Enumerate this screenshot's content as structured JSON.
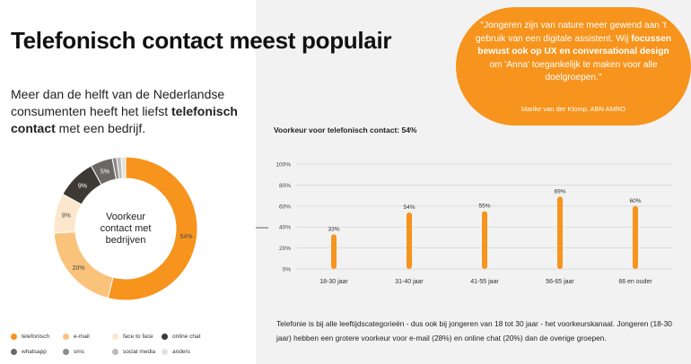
{
  "header": {
    "title": "Telefonisch contact meest populair"
  },
  "intro": {
    "line1": "Meer dan de helft van de Nederlandse consumenten heeft het liefst",
    "bold": "telefonisch contact",
    "line2": " met een bedrijf."
  },
  "quote": {
    "part1": "\"Jongeren zijn van nature meer gewend aan 't gebruik van een digitale assistent. Wij ",
    "bold": "focussen bewust ook op UX en conversational design",
    "part2": " om 'Anna' toegankelijk te maken voor alle doelgroepen.\"",
    "author": "Marike van der Klomp, ABN AMRO"
  },
  "footnote": "Telefonie is bij alle leeftijdscategorieën - dus ook bij jongeren van 18 tot 30 jaar - het voorkeurskanaal. Jongeren (18-30 jaar) hebben een grotere voorkeur voor e-mail (28%) en online chat (20%) dan de overige groepen.",
  "colors": {
    "telefonisch": "#f7941d",
    "email": "#f9c37c",
    "face_to_face": "#fde7cc",
    "online_chat": "#3d3935",
    "whatsapp": "#6b6764",
    "sms": "#8f8c89",
    "social_media": "#bdbbb9",
    "anders": "#e3e2e1"
  },
  "chart_data": [
    {
      "type": "pie",
      "title": "",
      "center_label": [
        "Voorkeur",
        "contact met",
        "bedrijven"
      ],
      "slices": [
        {
          "key": "telefonisch",
          "label": "telefonisch",
          "value": 54,
          "data_label": "54%"
        },
        {
          "key": "email",
          "label": "e-mail",
          "value": 20,
          "data_label": "20%"
        },
        {
          "key": "face_to_face",
          "label": "face to face",
          "value": 9,
          "data_label": "9%"
        },
        {
          "key": "online_chat",
          "label": "online chat",
          "value": 9,
          "data_label": "9%"
        },
        {
          "key": "whatsapp",
          "label": "whatsapp",
          "value": 5,
          "data_label": "5%"
        },
        {
          "key": "sms",
          "label": "sms",
          "value": 1,
          "data_label": ""
        },
        {
          "key": "social_media",
          "label": "social media",
          "value": 1,
          "data_label": ""
        },
        {
          "key": "anders",
          "label": "anders",
          "value": 1,
          "data_label": ""
        }
      ]
    },
    {
      "type": "bar",
      "title": "Voorkeur voor telefonisch contact: 54%",
      "categories": [
        "18-30 jaar",
        "31-40 jaar",
        "41-55 jaar",
        "56-65 jaar",
        "66 en ouder"
      ],
      "values": [
        33,
        54,
        55,
        69,
        60
      ],
      "data_labels": [
        "33%",
        "54%",
        "55%",
        "69%",
        "60%"
      ],
      "ylim": [
        0,
        100
      ],
      "yticks": [
        0,
        20,
        40,
        60,
        80,
        100
      ],
      "ytick_labels": [
        "0%",
        "20%",
        "40%",
        "60%",
        "80%",
        "100%"
      ],
      "grid": true,
      "xlabel": "",
      "ylabel": ""
    }
  ]
}
